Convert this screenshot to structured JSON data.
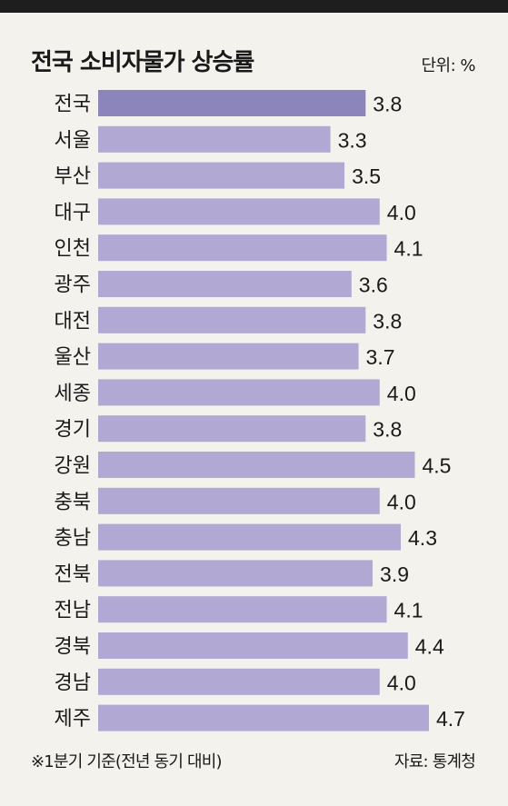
{
  "title": "전국 소비자물가 상승률",
  "unit": "단위: %",
  "footnote": "※1분기 기준(전년 동기 대비)",
  "source": "자료: 통계청",
  "colors": {
    "highlight": "#8c85bb",
    "bar": "#b1a8d3"
  },
  "chart_data": {
    "type": "bar",
    "orientation": "horizontal",
    "categories": [
      "전국",
      "서울",
      "부산",
      "대구",
      "인천",
      "광주",
      "대전",
      "울산",
      "세종",
      "경기",
      "강원",
      "충북",
      "충남",
      "전북",
      "전남",
      "경북",
      "경남",
      "제주"
    ],
    "values": [
      3.8,
      3.3,
      3.5,
      4.0,
      4.1,
      3.6,
      3.8,
      3.7,
      4.0,
      3.8,
      4.5,
      4.0,
      4.3,
      3.9,
      4.1,
      4.4,
      4.0,
      4.7
    ],
    "value_labels": [
      "3.8",
      "3.3",
      "3.5",
      "4.0",
      "4.1",
      "3.6",
      "3.8",
      "3.7",
      "4.0",
      "3.8",
      "4.5",
      "4.0",
      "4.3",
      "3.9",
      "4.1",
      "4.4",
      "4.0",
      "4.7"
    ],
    "highlight_category": "전국",
    "xlim": [
      0,
      4.7
    ],
    "grid": false,
    "legend": "none",
    "title": "전국 소비자물가 상승률",
    "xlabel": "",
    "ylabel": ""
  }
}
